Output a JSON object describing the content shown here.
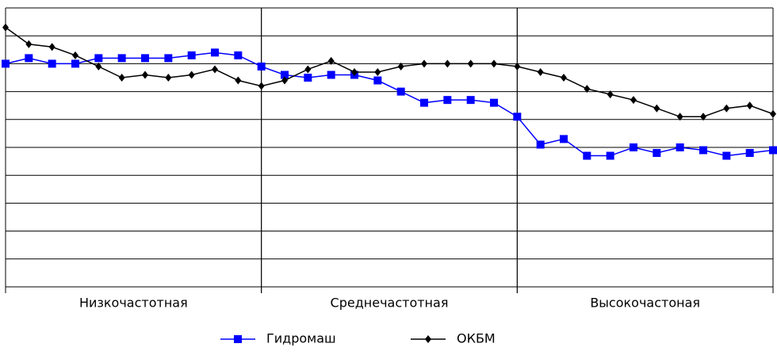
{
  "chart_data": {
    "type": "line",
    "x": [
      0,
      1,
      2,
      3,
      4,
      5,
      6,
      7,
      8,
      9,
      10,
      11,
      12,
      13,
      14,
      15,
      16,
      17,
      18,
      19,
      20,
      21,
      22,
      23,
      24,
      25,
      26,
      27,
      28,
      29,
      30,
      31,
      32,
      33
    ],
    "xlim": [
      0,
      33
    ],
    "bands": [
      {
        "label": "Низкочастотная",
        "from": 0,
        "to": 11
      },
      {
        "label": "Среднечастотная",
        "from": 11,
        "to": 22
      },
      {
        "label": "Высокочастоная",
        "from": 22,
        "to": 33
      }
    ],
    "ylim": [
      0,
      10
    ],
    "yticks": [
      0,
      1,
      2,
      3,
      4,
      5,
      6,
      7,
      8,
      9,
      10
    ],
    "grid": true,
    "series": [
      {
        "name": "Гидромаш",
        "color": "#0000ff",
        "marker": "square",
        "values": [
          8.0,
          8.2,
          8.0,
          8.0,
          8.2,
          8.2,
          8.2,
          8.2,
          8.3,
          8.4,
          8.3,
          7.9,
          7.6,
          7.5,
          7.6,
          7.6,
          7.4,
          7.0,
          6.6,
          6.7,
          6.7,
          6.6,
          6.1,
          5.1,
          5.3,
          4.7,
          4.7,
          5.0,
          4.8,
          5.0,
          4.9,
          4.7,
          4.8,
          4.9
        ]
      },
      {
        "name": "ОКБМ",
        "color": "#000000",
        "marker": "diamond",
        "values": [
          9.3,
          8.7,
          8.6,
          8.3,
          7.9,
          7.5,
          7.6,
          7.5,
          7.6,
          7.8,
          7.4,
          7.2,
          7.4,
          7.8,
          8.1,
          7.7,
          7.7,
          7.9,
          8.0,
          8.0,
          8.0,
          8.0,
          7.9,
          7.7,
          7.5,
          7.1,
          6.9,
          6.7,
          6.4,
          6.1,
          6.1,
          6.4,
          6.5,
          6.2
        ]
      }
    ],
    "legend": "bottom"
  }
}
